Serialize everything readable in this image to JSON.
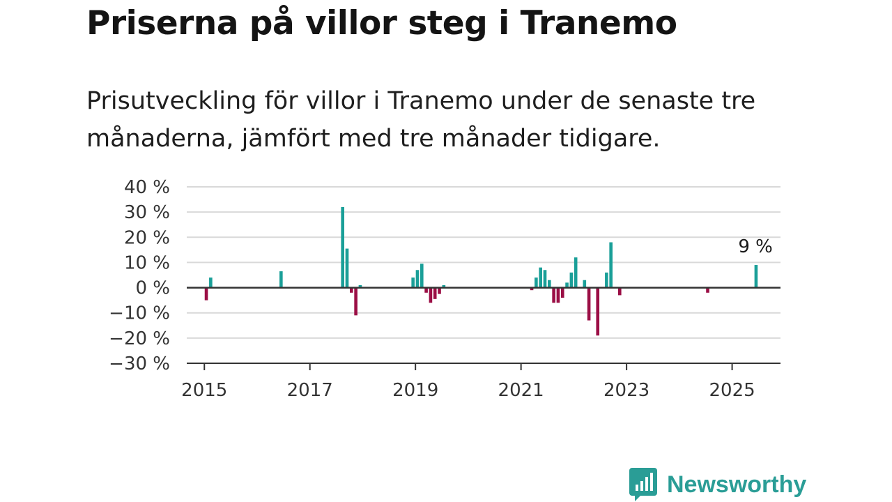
{
  "header": {
    "title": "Priserna på villor steg i Tranemo",
    "subtitle": "Prisutveckling för villor i Tranemo under de senaste tre månaderna, jämfört med tre månader tidigare."
  },
  "logo": {
    "text": "Newsworthy",
    "icon": "bar-chart-speech-icon",
    "color": "#2a9d96"
  },
  "colors": {
    "positive": "#1a9f98",
    "negative": "#9b0e45",
    "grid": "#d9d9d9",
    "axis": "#333333"
  },
  "chart_data": {
    "type": "bar",
    "title": "",
    "xlabel": "",
    "ylabel": "",
    "ylim": [
      -30,
      40
    ],
    "yticks": [
      -30,
      -20,
      -10,
      0,
      10,
      20,
      30,
      40
    ],
    "ytick_labels": [
      "−30 %",
      "−20 %",
      "−10 %",
      "0 %",
      "10 %",
      "20 %",
      "30 %",
      "40 %"
    ],
    "xlim": [
      "2014-09",
      "2025-12"
    ],
    "xticks": [
      "2015-01",
      "2017-01",
      "2019-01",
      "2021-01",
      "2023-01",
      "2025-01"
    ],
    "xtick_labels": [
      "2015",
      "2017",
      "2019",
      "2021",
      "2023",
      "2025"
    ],
    "grid": true,
    "annotation": {
      "x": "2025-06",
      "value": 9,
      "label": "9 %"
    },
    "series": [
      {
        "points": [
          [
            "2015-01",
            -5
          ],
          [
            "2015-02",
            4
          ],
          [
            "2016-06",
            6.5
          ],
          [
            "2017-08",
            32
          ],
          [
            "2017-09",
            15.5
          ],
          [
            "2017-10",
            -2
          ],
          [
            "2017-11",
            -11
          ],
          [
            "2017-12",
            1
          ],
          [
            "2018-12",
            4
          ],
          [
            "2019-01",
            7
          ],
          [
            "2019-02",
            9.5
          ],
          [
            "2019-03",
            -2
          ],
          [
            "2019-04",
            -6
          ],
          [
            "2019-05",
            -4.5
          ],
          [
            "2019-06",
            -2.5
          ],
          [
            "2019-07",
            1
          ],
          [
            "2021-03",
            -1
          ],
          [
            "2021-04",
            4
          ],
          [
            "2021-05",
            8
          ],
          [
            "2021-06",
            7
          ],
          [
            "2021-07",
            3
          ],
          [
            "2021-08",
            -6
          ],
          [
            "2021-09",
            -6
          ],
          [
            "2021-10",
            -4
          ],
          [
            "2021-11",
            2
          ],
          [
            "2021-12",
            6
          ],
          [
            "2022-01",
            12
          ],
          [
            "2022-03",
            3
          ],
          [
            "2022-04",
            -13
          ],
          [
            "2022-06",
            -19
          ],
          [
            "2022-08",
            6
          ],
          [
            "2022-09",
            18
          ],
          [
            "2022-11",
            -3
          ],
          [
            "2024-07",
            -2
          ],
          [
            "2025-06",
            9
          ]
        ]
      }
    ]
  }
}
